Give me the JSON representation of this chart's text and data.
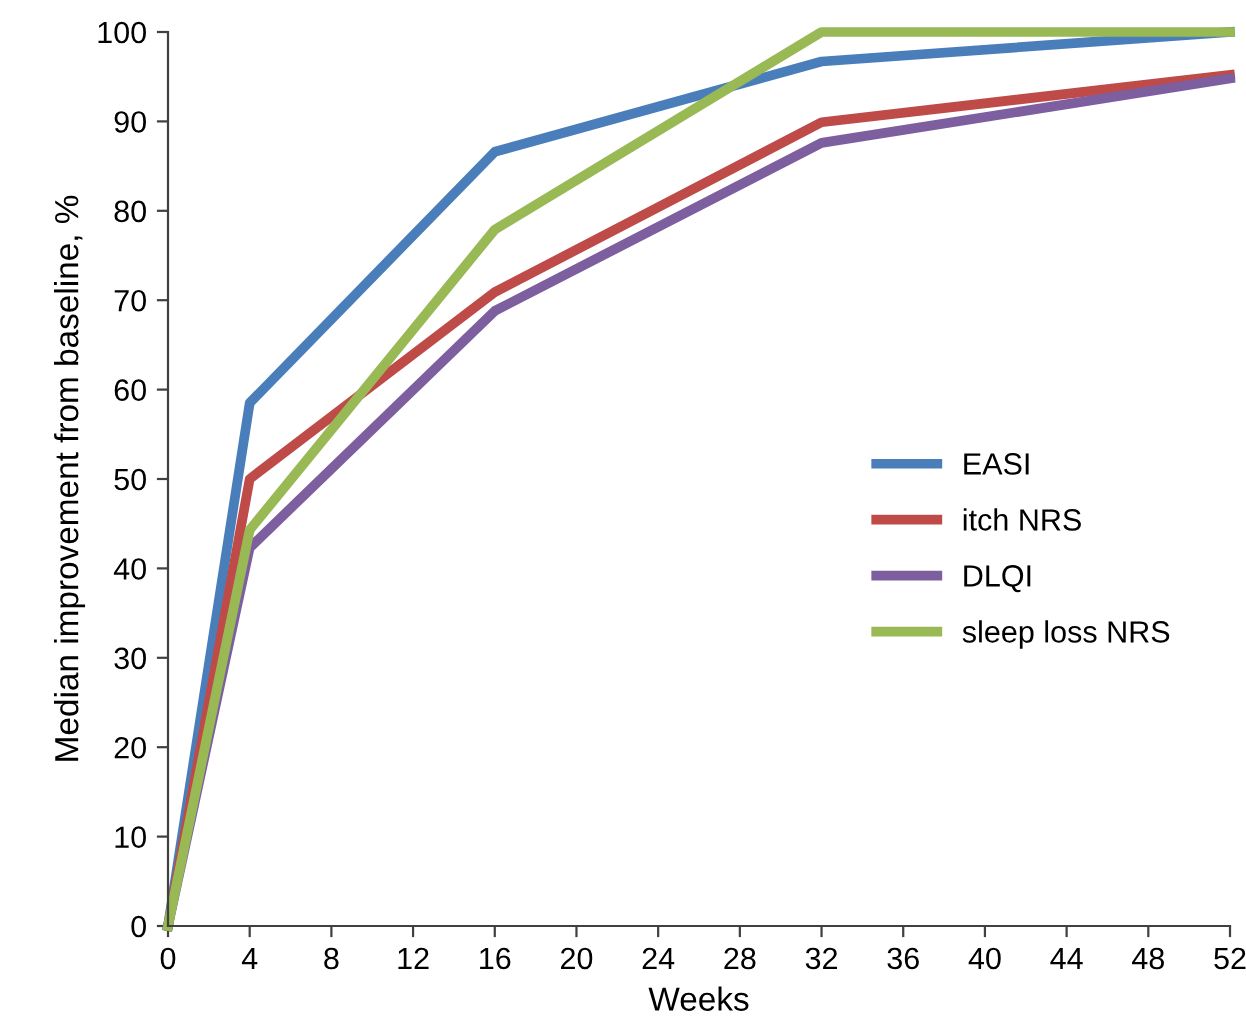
{
  "chart_data": {
    "type": "line",
    "xlabel": "Weeks",
    "ylabel": "Median improvement from baseline, %",
    "x": [
      0,
      4,
      16,
      32,
      52
    ],
    "series": [
      {
        "name": "EASI",
        "color": "#4a7ebb",
        "values": [
          0,
          58.5,
          86.6,
          96.7,
          100
        ]
      },
      {
        "name": "itch NRS",
        "color": "#be4b48",
        "values": [
          0,
          50,
          70.9,
          89.9,
          95.2
        ]
      },
      {
        "name": "DLQI",
        "color": "#7d5fa0",
        "values": [
          0,
          42.3,
          68.8,
          87.6,
          94.8
        ]
      },
      {
        "name": "sleep loss NRS",
        "color": "#98b954",
        "values": [
          0,
          44.3,
          77.9,
          100,
          100
        ]
      }
    ],
    "xlim": [
      0,
      52
    ],
    "ylim": [
      0,
      100
    ],
    "xticks": [
      0,
      4,
      8,
      12,
      16,
      20,
      24,
      28,
      32,
      36,
      40,
      44,
      48,
      52
    ],
    "yticks": [
      0,
      10,
      20,
      30,
      40,
      50,
      60,
      70,
      80,
      90,
      100
    ],
    "grid": false,
    "legend": "right",
    "marker": "none",
    "line_style": "solid"
  }
}
